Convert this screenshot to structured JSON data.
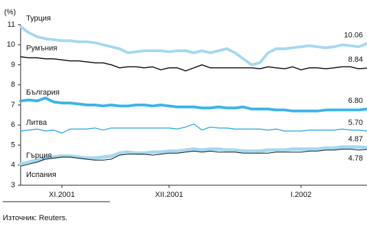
{
  "chart_data": {
    "type": "line",
    "y_label": "(%)",
    "source": "Източник: Reuters.",
    "categories": [
      null,
      null,
      null,
      null,
      null,
      "XI.2001",
      null,
      null,
      null,
      null,
      null,
      null,
      null,
      null,
      null,
      null,
      null,
      null,
      "XII.2001",
      null,
      null,
      null,
      null,
      null,
      null,
      null,
      null,
      null,
      null,
      null,
      null,
      null,
      null,
      null,
      "I.2002",
      null,
      null,
      null,
      null,
      null,
      null,
      null,
      null
    ],
    "ylim": [
      3,
      11
    ],
    "yticks": [
      3,
      4,
      5,
      6,
      7,
      8,
      9,
      10,
      11
    ],
    "series": [
      {
        "name": "Турция",
        "color": "#a6d8f0",
        "width": 4,
        "values": [
          10.9,
          10.6,
          10.4,
          10.3,
          10.25,
          10.2,
          10.2,
          10.15,
          10.15,
          10.1,
          10.0,
          9.9,
          9.8,
          9.6,
          9.65,
          9.7,
          9.7,
          9.7,
          9.65,
          9.7,
          9.7,
          9.6,
          9.7,
          9.6,
          9.7,
          9.8,
          9.6,
          9.3,
          9.0,
          9.1,
          9.6,
          9.8,
          9.8,
          9.85,
          9.9,
          9.95,
          9.9,
          9.85,
          9.9,
          10.0,
          9.95,
          9.9,
          10.06
        ]
      },
      {
        "name": "Румъния",
        "color": "#111111",
        "width": 1.5,
        "values": [
          9.4,
          9.35,
          9.35,
          9.3,
          9.3,
          9.25,
          9.2,
          9.2,
          9.15,
          9.1,
          9.1,
          9.0,
          8.85,
          8.9,
          8.9,
          8.85,
          8.9,
          8.75,
          8.85,
          8.85,
          8.7,
          8.85,
          9.0,
          8.85,
          8.85,
          8.85,
          8.85,
          8.85,
          8.85,
          8.8,
          8.9,
          8.85,
          8.8,
          8.9,
          8.75,
          8.85,
          8.85,
          8.8,
          8.85,
          8.9,
          8.9,
          8.8,
          8.84
        ]
      },
      {
        "name": "България",
        "color": "#3cb4e6",
        "width": 4,
        "values": [
          7.2,
          7.25,
          7.2,
          7.35,
          7.15,
          7.1,
          7.1,
          7.05,
          7.0,
          7.0,
          6.95,
          7.0,
          6.95,
          6.95,
          7.0,
          7.0,
          6.95,
          7.0,
          6.95,
          6.9,
          6.9,
          6.9,
          6.85,
          6.85,
          6.9,
          6.85,
          6.85,
          6.9,
          6.8,
          6.8,
          6.8,
          6.75,
          6.75,
          6.7,
          6.7,
          6.7,
          6.7,
          6.75,
          6.75,
          6.75,
          6.75,
          6.75,
          6.8
        ],
        "value_labels": [
          null,
          null,
          null,
          null,
          null,
          null,
          null,
          null,
          null,
          null,
          null,
          null,
          null,
          null,
          null,
          null,
          null,
          null,
          null,
          null,
          null,
          null,
          null,
          null,
          null,
          null,
          null,
          null,
          null,
          null,
          null,
          null,
          null,
          null,
          null,
          null,
          null,
          null,
          null,
          null,
          null,
          null,
          "6.80"
        ]
      },
      {
        "name": "Литва",
        "color": "#1a9fdc",
        "width": 1.2,
        "values": [
          5.7,
          5.75,
          5.8,
          5.7,
          5.75,
          5.6,
          5.8,
          5.8,
          5.8,
          5.85,
          5.75,
          5.85,
          5.85,
          5.85,
          5.85,
          5.85,
          5.85,
          5.85,
          5.85,
          5.8,
          5.9,
          6.05,
          5.75,
          5.9,
          5.85,
          5.85,
          5.8,
          5.8,
          5.8,
          5.8,
          5.75,
          5.8,
          5.7,
          5.7,
          5.7,
          5.75,
          5.75,
          5.75,
          5.75,
          5.8,
          5.75,
          5.75,
          5.7
        ],
        "value_labels": [
          null,
          null,
          null,
          null,
          null,
          null,
          null,
          null,
          null,
          null,
          null,
          null,
          null,
          null,
          null,
          null,
          null,
          null,
          null,
          null,
          null,
          null,
          null,
          null,
          null,
          null,
          null,
          null,
          null,
          null,
          null,
          null,
          null,
          null,
          null,
          null,
          null,
          null,
          null,
          null,
          null,
          null,
          "5.70"
        ]
      },
      {
        "name": "Гърция",
        "color": "#a6d8f0",
        "width": 5,
        "values": [
          4.05,
          4.15,
          4.25,
          4.35,
          4.4,
          4.45,
          4.45,
          4.4,
          4.35,
          4.35,
          4.4,
          4.45,
          4.6,
          4.65,
          4.6,
          4.6,
          4.65,
          4.65,
          4.7,
          4.7,
          4.75,
          4.8,
          4.75,
          4.8,
          4.8,
          4.75,
          4.75,
          4.7,
          4.7,
          4.7,
          4.75,
          4.75,
          4.75,
          4.8,
          4.8,
          4.8,
          4.8,
          4.85,
          4.85,
          4.9,
          4.9,
          4.9,
          4.87
        ]
      },
      {
        "name": "Испания",
        "color": "#111111",
        "width": 1,
        "values": [
          3.95,
          4.05,
          4.15,
          4.3,
          4.35,
          4.4,
          4.4,
          4.35,
          4.3,
          4.25,
          4.25,
          4.3,
          4.5,
          4.55,
          4.55,
          4.55,
          4.5,
          4.55,
          4.6,
          4.6,
          4.65,
          4.7,
          4.65,
          4.7,
          4.65,
          4.65,
          4.65,
          4.6,
          4.6,
          4.6,
          4.6,
          4.65,
          4.65,
          4.65,
          4.65,
          4.7,
          4.7,
          4.75,
          4.75,
          4.8,
          4.8,
          4.75,
          4.78
        ]
      }
    ]
  }
}
